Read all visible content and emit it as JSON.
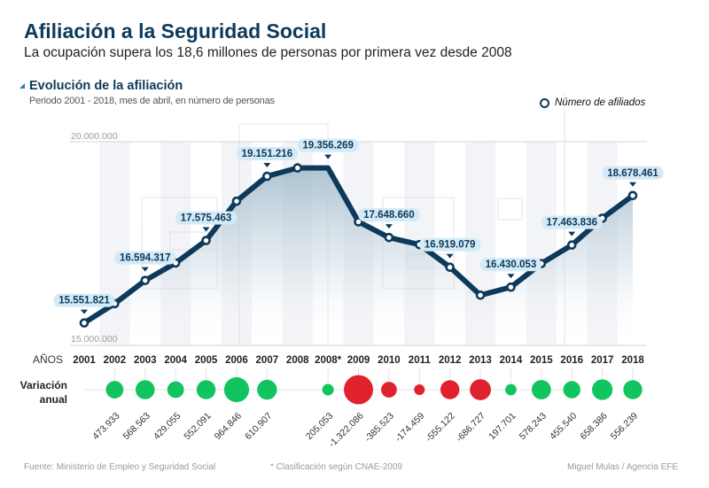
{
  "header": {
    "title": "Afiliación a la Seguridad Social",
    "subtitle": "La ocupación supera los 18,6 millones de personas por primera vez desde 2008"
  },
  "section": {
    "title": "Evolución de la afiliación",
    "period": "Periodo 2001 - 2018, mes de abril, en número de personas"
  },
  "footer": {
    "source": "Fuente: Ministerio de Empleo y Seguridad Social",
    "note": "* Clasificación según CNAE-2009",
    "credit": "Miguel Mulas / Agencia EFE"
  },
  "colors": {
    "line": "#0d3a5a",
    "positive": "#12c45f",
    "negative": "#e0222e",
    "label_bg": "#d4eaf6"
  },
  "chart_data": {
    "type": "line",
    "title": "Evolución de la afiliación",
    "subtitle": "Periodo 2001 - 2018, mes de abril, en número de personas",
    "legend": [
      "Número de afiliados"
    ],
    "legend_position": "top-right",
    "xlabel": "AÑOS",
    "ylabel": "",
    "ylim": [
      15000000,
      20000000
    ],
    "y_ticks": [
      "15.000.000",
      "20.000.000"
    ],
    "x": [
      "2001",
      "2002",
      "2003",
      "2004",
      "2005",
      "2006",
      "2007",
      "2008",
      "2008*",
      "2009",
      "2010",
      "2011",
      "2012",
      "2013",
      "2014",
      "2015",
      "2016",
      "2017",
      "2018"
    ],
    "series": [
      {
        "name": "Número de afiliados",
        "values": [
          15551821,
          16025754,
          16594317,
          17023372,
          17575463,
          18540309,
          19151216,
          19356269,
          19356269,
          18034183,
          17648660,
          17474201,
          16919079,
          16232352,
          16430053,
          17008296,
          17463836,
          18122222,
          18678461
        ],
        "labels": [
          "15.551.821",
          null,
          "16.594.317",
          null,
          "17.575.463",
          null,
          "19.151.216",
          null,
          "19.356.269",
          null,
          "17.648.660",
          null,
          "16.919.079",
          null,
          "16.430.053",
          null,
          "17.463.836",
          null,
          "18.678.461"
        ]
      }
    ],
    "variation_label": [
      "Variación",
      "anual"
    ],
    "variation": [
      {
        "year": "2002",
        "value": 473933,
        "label": "473.933"
      },
      {
        "year": "2003",
        "value": 568563,
        "label": "568.563"
      },
      {
        "year": "2004",
        "value": 429055,
        "label": "429.055"
      },
      {
        "year": "2005",
        "value": 552091,
        "label": "552.091"
      },
      {
        "year": "2006",
        "value": 964846,
        "label": "964.846"
      },
      {
        "year": "2007",
        "value": 610907,
        "label": "610.907"
      },
      {
        "year": "2008*",
        "value": 205053,
        "label": "205.053"
      },
      {
        "year": "2009",
        "value": -1322086,
        "label": "-1.322.086"
      },
      {
        "year": "2010",
        "value": -385523,
        "label": "-385.523"
      },
      {
        "year": "2011",
        "value": -174459,
        "label": "-174.459"
      },
      {
        "year": "2012",
        "value": -555122,
        "label": "-555.122"
      },
      {
        "year": "2013",
        "value": -686727,
        "label": "-686.727"
      },
      {
        "year": "2014",
        "value": 197701,
        "label": "197.701"
      },
      {
        "year": "2015",
        "value": 578243,
        "label": "578.243"
      },
      {
        "year": "2016",
        "value": 455540,
        "label": "455.540"
      },
      {
        "year": "2017",
        "value": 658386,
        "label": "658.386"
      },
      {
        "year": "2018",
        "value": 556239,
        "label": "556.239"
      }
    ]
  }
}
